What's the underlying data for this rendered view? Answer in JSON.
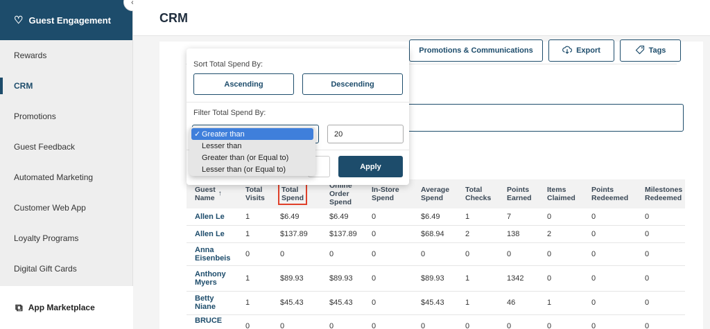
{
  "sidebar": {
    "header": "Guest Engagement",
    "items": [
      {
        "label": "Rewards"
      },
      {
        "label": "CRM"
      },
      {
        "label": "Promotions"
      },
      {
        "label": "Guest Feedback"
      },
      {
        "label": "Automated Marketing"
      },
      {
        "label": "Customer Web App"
      },
      {
        "label": "Loyalty Programs"
      },
      {
        "label": "Digital Gift Cards"
      }
    ],
    "marketplace": "App Marketplace",
    "active": "CRM"
  },
  "header": {
    "title": "CRM"
  },
  "toolbar": {
    "promotions": "Promotions & Communications",
    "export": "Export",
    "tags": "Tags"
  },
  "popover": {
    "sort_label": "Sort Total Spend By:",
    "ascending": "Ascending",
    "descending": "Descending",
    "filter_label": "Filter Total Spend By:",
    "value": "20",
    "apply": "Apply",
    "options": [
      "Greater than",
      "Lesser than",
      "Greater than (or Equal to)",
      "Lesser than (or Equal to)"
    ],
    "selected_check": "✓"
  },
  "table": {
    "headers": {
      "guest_name": [
        "Guest",
        "Name"
      ],
      "total_visits": [
        "Total",
        "Visits"
      ],
      "total_spend": [
        "Total",
        "Spend"
      ],
      "online_order_spend": [
        "Online",
        "Order",
        "Spend"
      ],
      "in_store_spend": [
        "In-Store",
        "Spend"
      ],
      "average_spend": [
        "Average",
        "Spend"
      ],
      "total_checks": [
        "Total",
        "Checks"
      ],
      "points_earned": [
        "Points",
        "Earned"
      ],
      "items_claimed": [
        "Items",
        "Claimed"
      ],
      "points_redeemed": [
        "Points",
        "Redeemed"
      ],
      "milestones_redeemed": [
        "Milestones",
        "Redeemed"
      ]
    },
    "rows": [
      [
        "Allen Le",
        "1",
        "$6.49",
        "$6.49",
        "0",
        "$6.49",
        "1",
        "7",
        "0",
        "0",
        "0"
      ],
      [
        "Allen Le",
        "1",
        "$137.89",
        "$137.89",
        "0",
        "$68.94",
        "2",
        "138",
        "2",
        "0",
        "0"
      ],
      [
        "Anna Eisenbeis",
        "0",
        "0",
        "0",
        "0",
        "0",
        "0",
        "0",
        "0",
        "0",
        "0"
      ],
      [
        "Anthony Myers",
        "1",
        "$89.93",
        "$89.93",
        "0",
        "$89.93",
        "1",
        "1342",
        "0",
        "0",
        "0"
      ],
      [
        "Betty Niane",
        "1",
        "$45.43",
        "$45.43",
        "0",
        "$45.43",
        "1",
        "46",
        "1",
        "0",
        "0"
      ],
      [
        "BRUCE",
        "0",
        "0",
        "0",
        "0",
        "0",
        "0",
        "0",
        "0",
        "0",
        "0"
      ]
    ]
  },
  "colors": {
    "primary": "#1d4c6b",
    "highlight": "#e0402a",
    "select_blue": "#3f7fdb"
  }
}
